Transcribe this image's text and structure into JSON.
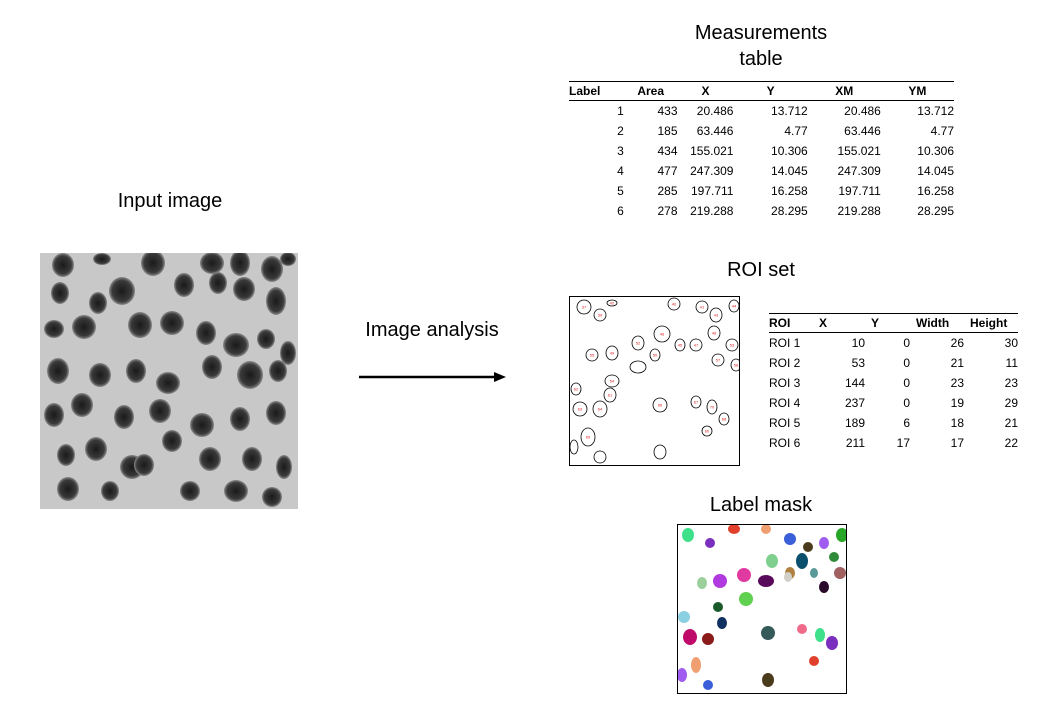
{
  "measurements": {
    "title_line1": "Measurements",
    "title_line2": "table",
    "columns": [
      "Label",
      "Area",
      "X",
      "Y",
      "XM",
      "YM"
    ],
    "rows": [
      [
        "1",
        "433",
        "20.486",
        "13.712",
        "20.486",
        "13.712"
      ],
      [
        "2",
        "185",
        "63.446",
        "4.77",
        "63.446",
        "4.77"
      ],
      [
        "3",
        "434",
        "155.021",
        "10.306",
        "155.021",
        "10.306"
      ],
      [
        "4",
        "477",
        "247.309",
        "14.045",
        "247.309",
        "14.045"
      ],
      [
        "5",
        "285",
        "197.711",
        "16.258",
        "197.711",
        "16.258"
      ],
      [
        "6",
        "278",
        "219.288",
        "28.295",
        "219.288",
        "28.295"
      ]
    ]
  },
  "input_image": {
    "title": "Input image"
  },
  "arrow": {
    "label": "Image analysis"
  },
  "roi_set": {
    "title": "ROI set",
    "overlay_labels": [
      "37",
      "42",
      "39",
      "40",
      "41",
      "43",
      "44",
      "46",
      "45",
      "47",
      "48",
      "53",
      "52",
      "50",
      "55",
      "49",
      "57",
      "58",
      "54",
      "61",
      "62",
      "63",
      "64",
      "66",
      "67",
      "70",
      "68",
      "60",
      "69"
    ],
    "table": {
      "columns": [
        "ROI",
        "X",
        "Y",
        "Width",
        "Height"
      ],
      "rows": [
        [
          "ROI 1",
          "10",
          "0",
          "26",
          "30"
        ],
        [
          "ROI 2",
          "53",
          "0",
          "21",
          "11"
        ],
        [
          "ROI 3",
          "144",
          "0",
          "23",
          "23"
        ],
        [
          "ROI 4",
          "237",
          "0",
          "19",
          "29"
        ],
        [
          "ROI 5",
          "189",
          "6",
          "18",
          "21"
        ],
        [
          "ROI 6",
          "211",
          "17",
          "17",
          "22"
        ]
      ]
    }
  },
  "label_mask": {
    "title": "Label mask"
  },
  "colors": {
    "roi_outline": "#000000",
    "roi_label": "#e02020",
    "arrow": "#000000",
    "mask_colors": [
      "#3ee08a",
      "#7b2fbf",
      "#e0402c",
      "#f0a070",
      "#3a5fd8",
      "#4b3b1d",
      "#a05cf0",
      "#26a526",
      "#2f8a3a",
      "#0a4f6b",
      "#b08040",
      "#7fd08f",
      "#e03aa0",
      "#b03ae0",
      "#9bd09b",
      "#5a0a5a",
      "#d0d0c8",
      "#5a9a9a",
      "#2a0a2a",
      "#a06060",
      "#1a5a2a",
      "#60d050",
      "#8ad0e0",
      "#103060",
      "#8a1a1a",
      "#c00a6a",
      "#345a5a",
      "#f06a8a"
    ]
  }
}
